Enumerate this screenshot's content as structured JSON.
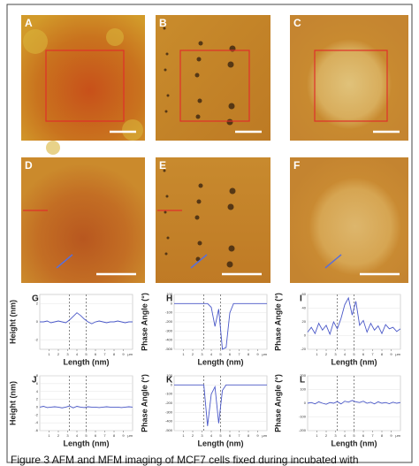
{
  "panels": [
    {
      "label": "A"
    },
    {
      "label": "B"
    },
    {
      "label": "C"
    },
    {
      "label": "D"
    },
    {
      "label": "E"
    },
    {
      "label": "F"
    }
  ],
  "profile_x": [
    0,
    0.4,
    0.8,
    1.2,
    1.6,
    2,
    2.4,
    2.8,
    3.2,
    3.6,
    4,
    4.4,
    4.8,
    5.2,
    5.6,
    6,
    6.4,
    6.8,
    7.2,
    7.6,
    8,
    8.4,
    8.8,
    9.2,
    9.6,
    10
  ],
  "xlim": [
    0,
    10
  ],
  "xticks": [
    1,
    2,
    3,
    4,
    5,
    6,
    7,
    8,
    9
  ],
  "x_unit": "μm",
  "plots": [
    {
      "label": "G",
      "y_label": "Height (nm)",
      "x_label": "Length (nm)",
      "ylim": [
        -3,
        3
      ],
      "yticks": [
        2,
        0,
        -2
      ],
      "markers": [
        3.2,
        5
      ],
      "values": [
        0,
        0,
        0.1,
        -0.1,
        0,
        0.1,
        0,
        -0.1,
        0.2,
        0.6,
        1.0,
        0.7,
        0.3,
        0,
        -0.2,
        0,
        0.1,
        0,
        -0.1,
        0,
        0,
        0.1,
        0,
        -0.1,
        0,
        0
      ]
    },
    {
      "label": "H",
      "y_label": "Phase Angle (°)",
      "x_label": "Length (nm)",
      "ylim": [
        -500,
        100
      ],
      "yticks": [
        100,
        0,
        -100,
        -200,
        -300,
        -400,
        -500
      ],
      "markers": [
        3.2,
        5
      ],
      "values": [
        0,
        0,
        0,
        0,
        0,
        0,
        0,
        0,
        0,
        0,
        -40,
        -250,
        -60,
        -500,
        -480,
        -100,
        0,
        0,
        0,
        0,
        0,
        0,
        0,
        0,
        0,
        0
      ]
    },
    {
      "label": "I",
      "y_label": "Phase Angle (°)",
      "x_label": "Length (nm)",
      "ylim": [
        -20,
        60
      ],
      "yticks": [
        60,
        40,
        20,
        0,
        -20
      ],
      "markers": [
        3.2,
        5
      ],
      "values": [
        5,
        12,
        3,
        18,
        8,
        15,
        2,
        20,
        10,
        25,
        45,
        55,
        30,
        50,
        15,
        22,
        5,
        18,
        8,
        14,
        3,
        16,
        10,
        12,
        6,
        10
      ]
    },
    {
      "label": "J",
      "y_label": "Height (nm)",
      "x_label": "Length (nm)",
      "ylim": [
        -6,
        8
      ],
      "yticks": [
        8,
        6,
        4,
        2,
        0,
        -2,
        -4,
        -6
      ],
      "markers": [
        3.2,
        5
      ],
      "values": [
        0,
        0.2,
        -0.1,
        0,
        0.1,
        0,
        -0.2,
        0,
        0.3,
        -0.2,
        0.2,
        0,
        -0.1,
        0.1,
        0,
        0,
        -0.1,
        0,
        0.1,
        0,
        0,
        0,
        -0.1,
        0,
        0.1,
        0
      ]
    },
    {
      "label": "K",
      "y_label": "Phase Angle (°)",
      "x_label": "Length (nm)",
      "ylim": [
        -500,
        100
      ],
      "yticks": [
        100,
        0,
        -100,
        -200,
        -300,
        -400,
        -500
      ],
      "markers": [
        3.2,
        5
      ],
      "values": [
        0,
        0,
        0,
        0,
        0,
        0,
        0,
        0,
        0,
        -450,
        -100,
        -20,
        -420,
        -60,
        0,
        0,
        0,
        0,
        0,
        0,
        0,
        0,
        0,
        0,
        0,
        0
      ]
    },
    {
      "label": "L",
      "y_label": "Phase Angle (°)",
      "x_label": "Length (nm)",
      "ylim": [
        -200,
        200
      ],
      "yticks": [
        200,
        100,
        0,
        -100,
        -200
      ],
      "markers": [
        3.2,
        5
      ],
      "values": [
        0,
        5,
        -5,
        10,
        0,
        -8,
        5,
        0,
        12,
        -5,
        15,
        8,
        20,
        10,
        5,
        15,
        0,
        8,
        -5,
        10,
        0,
        5,
        -3,
        8,
        0,
        5
      ]
    }
  ],
  "caption": "Figure 3 AFM and MFM imaging of MCF7 cells fixed during incubated with"
}
